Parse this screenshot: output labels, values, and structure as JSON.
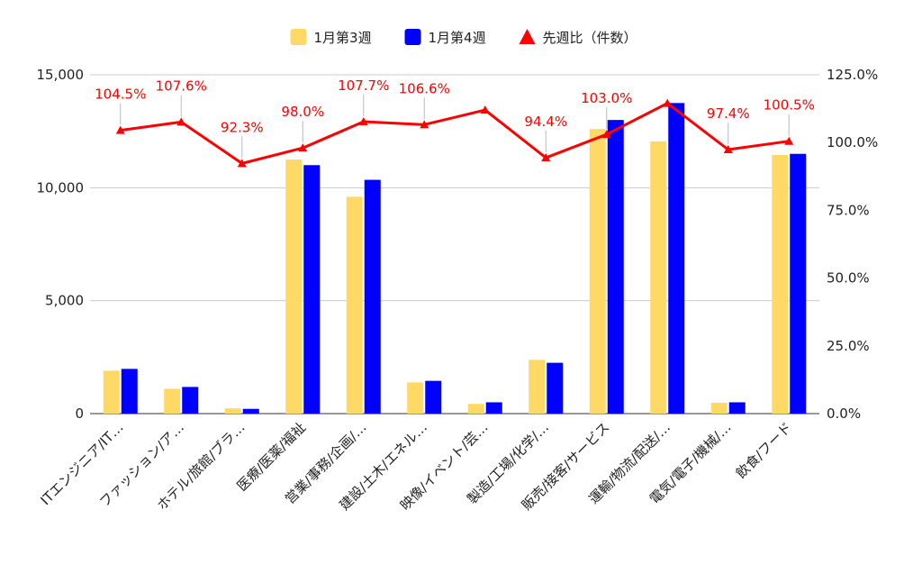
{
  "chart_data": {
    "type": "bar",
    "categories": [
      "ITエンジニア/IT…",
      "ファッション/ア…",
      "ホテル/旅館/ブラ…",
      "医療/医薬/福祉",
      "営業/事務/企画/…",
      "建設/土木/エネル…",
      "映像/イベント/芸…",
      "製造/工場/化学/…",
      "販売/接客/サービス",
      "運輸/物流/配送/…",
      "電気/電子/機械/…",
      "飲食/フード"
    ],
    "series": [
      {
        "name": "1月第3週",
        "axis": "left",
        "kind": "bar",
        "color": "#FFD966",
        "values": [
          1900,
          1100,
          230,
          11250,
          9600,
          1380,
          430,
          2380,
          12600,
          12050,
          480,
          11450
        ]
      },
      {
        "name": "1月第4週",
        "axis": "left",
        "kind": "bar",
        "color": "#0000FF",
        "values": [
          1980,
          1180,
          210,
          11000,
          10350,
          1450,
          500,
          2250,
          13000,
          13750,
          500,
          11500
        ]
      },
      {
        "name": "先週比（件数）",
        "axis": "right",
        "kind": "line",
        "color": "#FF0000",
        "values": [
          104.5,
          107.6,
          92.3,
          98.0,
          107.7,
          106.6,
          112.0,
          94.4,
          103.0,
          114.5,
          97.4,
          100.5
        ],
        "labels": [
          "104.5%",
          "107.6%",
          "92.3%",
          "98.0%",
          "107.7%",
          "106.6%",
          "",
          "94.4%",
          "103.0%",
          "",
          "97.4%",
          "100.5%"
        ]
      }
    ],
    "left_axis": {
      "min": 0,
      "max": 15000,
      "ticks": [
        "0",
        "5,000",
        "10,000",
        "15,000"
      ],
      "tick_values": [
        0,
        5000,
        10000,
        15000
      ]
    },
    "right_axis": {
      "min": 0,
      "max": 125,
      "ticks": [
        "0.0%",
        "25.0%",
        "50.0%",
        "75.0%",
        "100.0%",
        "125.0%"
      ],
      "tick_values": [
        0,
        25,
        50,
        75,
        100,
        125
      ]
    },
    "grid": true,
    "legend_position": "top"
  }
}
